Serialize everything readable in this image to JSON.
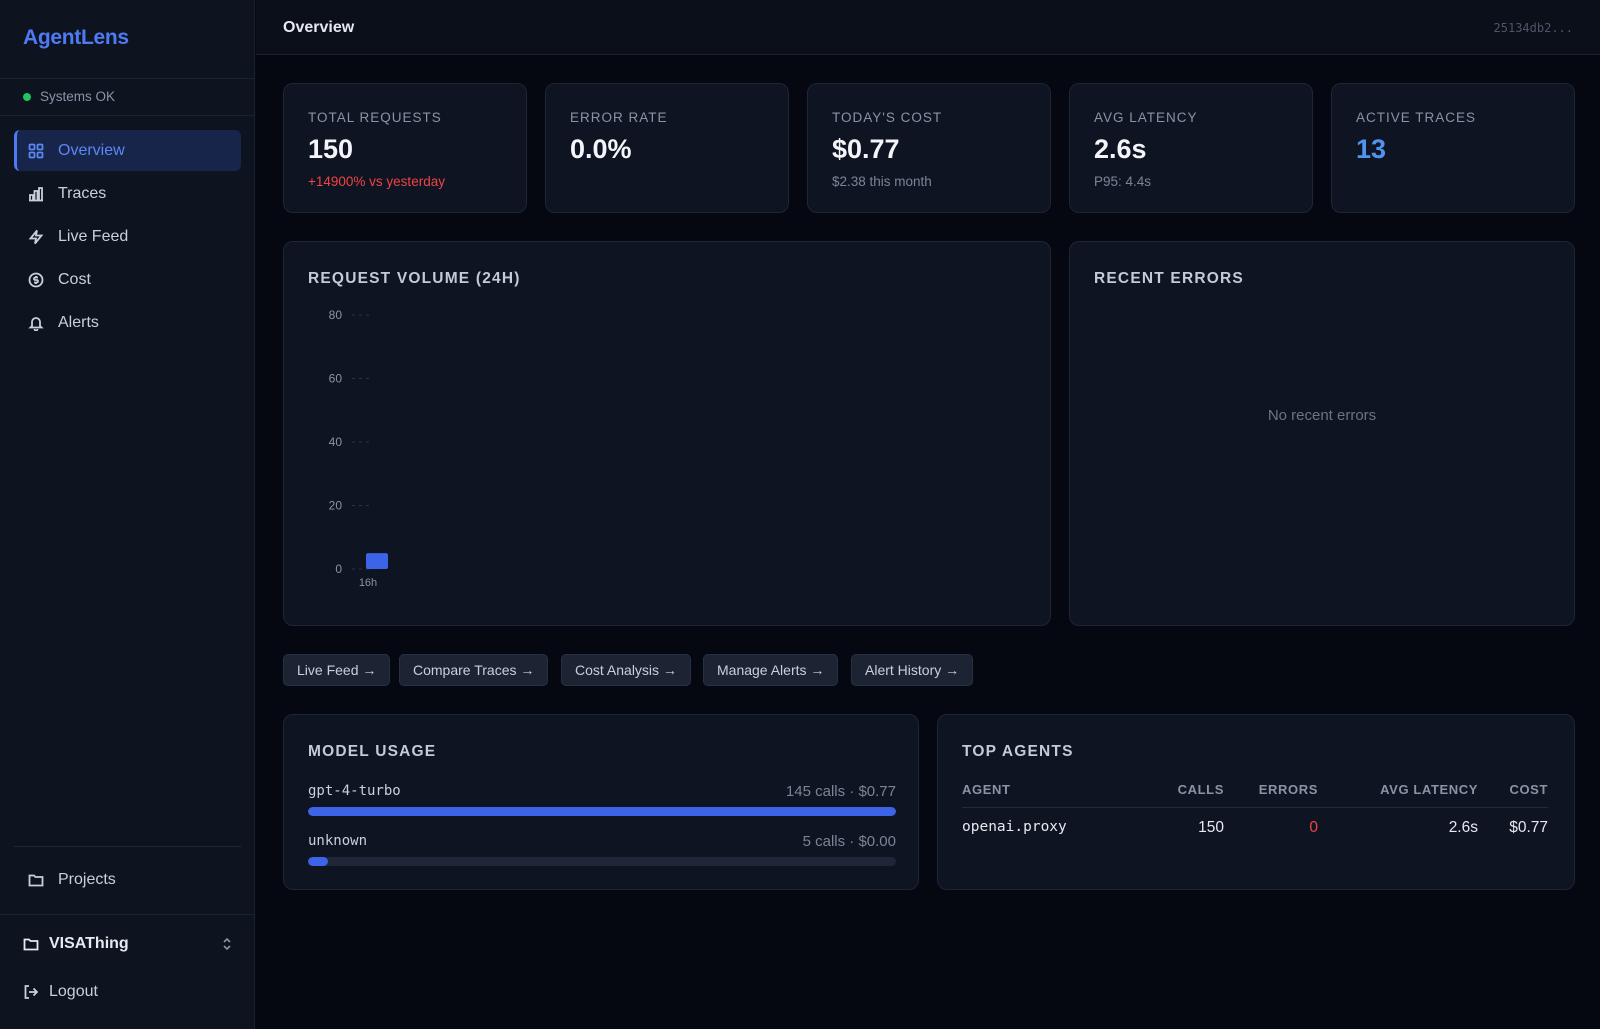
{
  "sidebar": {
    "brand": "AgentLens",
    "status": "Systems OK",
    "nav": [
      {
        "label": "Overview",
        "icon": "grid-icon",
        "active": true
      },
      {
        "label": "Traces",
        "icon": "bar-chart-icon"
      },
      {
        "label": "Live Feed",
        "icon": "lightning-icon"
      },
      {
        "label": "Cost",
        "icon": "dollar-circle-icon"
      },
      {
        "label": "Alerts",
        "icon": "bell-icon"
      }
    ],
    "projects_label": "Projects",
    "current_project": "VISAThing",
    "logout_label": "Logout"
  },
  "header": {
    "title": "Overview",
    "hash": "25134db2..."
  },
  "stats": [
    {
      "label": "Total Requests",
      "value": "150",
      "sub": "+14900% vs yesterday"
    },
    {
      "label": "Error Rate",
      "value": "0.0%",
      "sub": ""
    },
    {
      "label": "Today's Cost",
      "value": "$0.77",
      "sub": "$2.38 this month"
    },
    {
      "label": "Avg Latency",
      "value": "2.6s",
      "sub": "P95: 4.4s"
    },
    {
      "label": "Active Traces",
      "value": "13",
      "sub": ""
    }
  ],
  "volume": {
    "title": "Request Volume (24h)"
  },
  "chart_data": {
    "type": "bar",
    "title": "Request Volume (24h)",
    "categories": [
      "16h"
    ],
    "values": [
      5
    ],
    "yticks": [
      "80",
      "60",
      "40",
      "20",
      "0"
    ],
    "ylim": [
      0,
      80
    ],
    "grid": true,
    "color": "#3d63e6"
  },
  "recent_errors": {
    "title": "Recent Errors",
    "empty": "No recent errors"
  },
  "quick_links": [
    "Live Feed →",
    "Compare Traces →",
    "Cost Analysis →",
    "Manage Alerts →",
    "Alert History →"
  ],
  "model_usage": {
    "title": "Model Usage",
    "models": [
      {
        "name": "gpt-4-turbo",
        "stats": "145 calls · $0.77",
        "share": 1.0
      },
      {
        "name": "unknown",
        "stats": "5 calls · $0.00",
        "share": 0.034
      }
    ]
  },
  "top_agents": {
    "title": "Top Agents",
    "columns": [
      "Agent",
      "Calls",
      "Errors",
      "Avg Latency",
      "Cost"
    ],
    "rows": [
      {
        "agent": "openai.proxy",
        "calls": "150",
        "errors": "0",
        "latency": "2.6s",
        "cost": "$0.77"
      }
    ]
  },
  "colors": {
    "accent": "#4d7bf3",
    "error": "#ef4444",
    "ok": "#22c55e",
    "active_traces": "#4f95f0"
  }
}
